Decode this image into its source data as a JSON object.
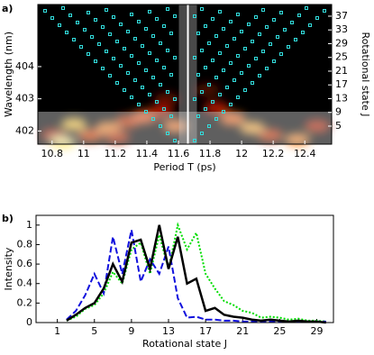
{
  "chart_data": [
    {
      "type": "heatmap",
      "label": "a)",
      "xlabel": "Period T (ps)",
      "ylabel": "Wavelength (nm)",
      "y2label": "Rotational state  J",
      "xlim": [
        10.71,
        12.57
      ],
      "xticks": [
        10.8,
        11,
        11.2,
        11.4,
        11.6,
        11.8,
        12,
        12.2,
        12.4
      ],
      "ylim": [
        401.59,
        405.93
      ],
      "yticks": [
        402,
        403,
        404
      ],
      "y2lim": [
        -0.25,
        40.4
      ],
      "y2ticks": [
        5,
        9,
        13,
        17,
        21,
        25,
        29,
        33,
        37
      ],
      "vline": 11.66
    },
    {
      "type": "line",
      "label": "b)",
      "xlabel": "Rotational state  J",
      "ylabel": "Intensity",
      "xlim": [
        -1.3,
        30.8
      ],
      "xticks": [
        1,
        5,
        9,
        13,
        17,
        21,
        25,
        29
      ],
      "ylim": [
        0,
        1.1
      ],
      "yticks": [
        0,
        0.2,
        0.4,
        0.6,
        0.8,
        1
      ],
      "x": [
        2,
        3,
        4,
        5,
        6,
        7,
        8,
        9,
        10,
        11,
        12,
        13,
        14,
        15,
        16,
        17,
        18,
        19,
        20,
        21,
        22,
        23,
        24,
        25,
        26,
        27,
        28,
        29,
        30
      ],
      "series": [
        {
          "color": "#00dd00",
          "dash": "dotted",
          "values": [
            0.02,
            0.06,
            0.14,
            0.18,
            0.3,
            0.52,
            0.4,
            0.75,
            0.82,
            0.5,
            0.9,
            0.55,
            1.0,
            0.75,
            0.92,
            0.5,
            0.35,
            0.22,
            0.18,
            0.12,
            0.1,
            0.05,
            0.06,
            0.05,
            0.03,
            0.04,
            0.02,
            0.02,
            0.01
          ]
        },
        {
          "color": "#1010dd",
          "dash": "dashed",
          "values": [
            0.03,
            0.12,
            0.28,
            0.5,
            0.3,
            0.88,
            0.5,
            0.95,
            0.42,
            0.65,
            0.5,
            0.78,
            0.25,
            0.05,
            0.06,
            0.03,
            0.03,
            0.02,
            0.02,
            0.01,
            0.01,
            0.01,
            0.01,
            0.01,
            0.01,
            0.01,
            0.01,
            0.01,
            0.01
          ]
        },
        {
          "color": "#000000",
          "dash": "solid",
          "values": [
            0.02,
            0.08,
            0.15,
            0.2,
            0.35,
            0.6,
            0.42,
            0.82,
            0.85,
            0.55,
            1.0,
            0.55,
            0.88,
            0.4,
            0.45,
            0.12,
            0.15,
            0.08,
            0.06,
            0.05,
            0.03,
            0.02,
            0.03,
            0.02,
            0.01,
            0.02,
            0.01,
            0.01,
            0.0
          ]
        }
      ]
    }
  ]
}
